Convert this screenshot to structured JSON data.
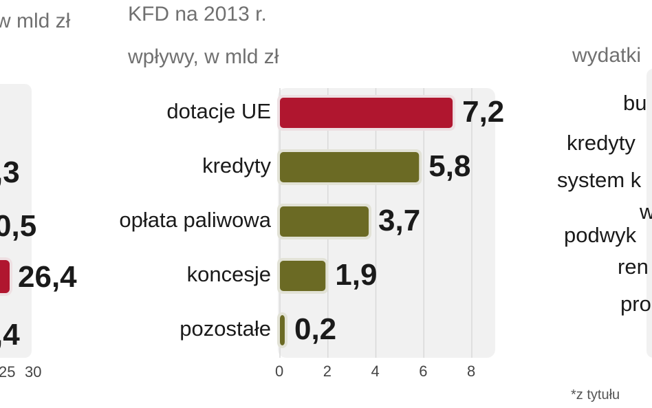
{
  "colors": {
    "highlight": "#b0162f",
    "standard": "#6b6a24",
    "panel": "#f1f1f1",
    "grid": "#d9d9d9",
    "bar_halo": "#e2e2d6"
  },
  "left_fragment": {
    "subtitle": "w mld zł",
    "values": [
      ",3",
      "0,5",
      "26,4",
      ",4"
    ],
    "ticks": [
      "25",
      "30"
    ]
  },
  "chart_data": {
    "type": "bar",
    "orientation": "horizontal",
    "title": "KFD na 2013 r.",
    "subtitle": "wpływy, w mld zł",
    "categories": [
      "dotacje UE",
      "kredyty",
      "opłata paliwowa",
      "koncesje",
      "pozostałe"
    ],
    "values": [
      7.2,
      5.8,
      3.7,
      1.9,
      0.2
    ],
    "value_labels": [
      "7,2",
      "5,8",
      "3,7",
      "1,9",
      "0,2"
    ],
    "highlight_index": 0,
    "xlim": [
      0,
      8
    ],
    "x_ticks": [
      "0",
      "2",
      "4",
      "6",
      "8"
    ],
    "grid": true
  },
  "right_fragment": {
    "subtitle": "wydatki",
    "labels": [
      "bu",
      "kredyty",
      "system k",
      "w",
      "podwyk",
      "ren",
      "pro"
    ],
    "footnote": "*z tytułu"
  }
}
